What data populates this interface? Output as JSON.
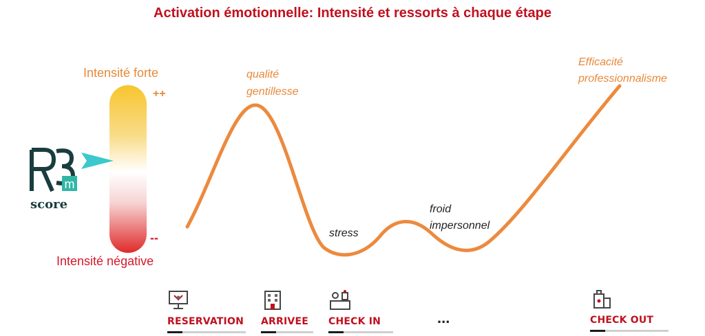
{
  "title": "Activation émotionnelle: Intensité et ressorts à chaque étape",
  "gauge": {
    "top_label": "Intensité forte",
    "bottom_label": "Intensité négative",
    "plus_mark": "++",
    "minus_mark": "--",
    "colors": {
      "top": "#f7c52e",
      "middle": "#ffffff",
      "bottom": "#e02a2a"
    }
  },
  "logo": {
    "letters": "R3",
    "subscript": "m",
    "caption": "score"
  },
  "curve": {
    "color": "#ec8a3e",
    "annotations": {
      "peak1": [
        "qualité",
        "gentillesse"
      ],
      "trough1": "stress",
      "hump": [
        "froid",
        "impersonnel"
      ],
      "peak2": [
        "Efficacité",
        "professionnalisme"
      ]
    }
  },
  "stages": [
    {
      "label": "RESERVATION",
      "icon": "computer-booking-icon"
    },
    {
      "label": "ARRIVEE",
      "icon": "hotel-building-icon"
    },
    {
      "label": "CHECK IN",
      "icon": "reception-desk-icon"
    },
    {
      "label": "CHECK OUT",
      "icon": "luggage-icon"
    }
  ],
  "ellipsis": "..."
}
